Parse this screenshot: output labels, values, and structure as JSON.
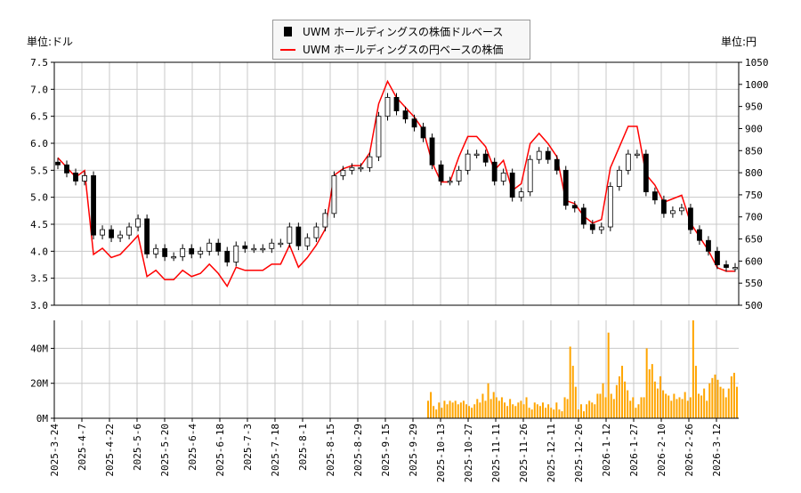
{
  "units": {
    "left": "単位:ドル",
    "right": "単位:円"
  },
  "legend": {
    "usd": "UWM ホールディングスの株価ドルベース",
    "jpy": "UWM ホールディングスの円ベースの株価"
  },
  "colors": {
    "usd": "#000000",
    "jpy": "#ff0000",
    "volume": "#ffa500",
    "grid": "#c8c8c8"
  },
  "chart_data": [
    {
      "type": "line",
      "title": "",
      "x_tick_labels": [
        "2025-3-24",
        "2025-4-7",
        "2025-4-22",
        "2025-5-6",
        "2025-5-20",
        "2025-6-4",
        "2025-6-18",
        "2025-7-3",
        "2025-7-18",
        "2025-8-1",
        "2025-8-15",
        "2025-8-29",
        "2025-9-15",
        "2025-9-29",
        "2025-10-13",
        "2025-10-27",
        "2025-11-11",
        "2025-11-26",
        "2025-12-11",
        "2025-12-26",
        "2026-1-12",
        "2026-1-27",
        "2026-2-10",
        "2026-2-26",
        "2026-3-12"
      ],
      "y_left": {
        "ylim": [
          3.0,
          7.5
        ],
        "ticks": [
          "3.0",
          "3.5",
          "4.0",
          "4.5",
          "5.0",
          "5.5",
          "6.0",
          "6.5",
          "7.0",
          "7.5"
        ]
      },
      "y_right": {
        "ylim": [
          500,
          1050
        ],
        "ticks": [
          "500",
          "550",
          "600",
          "650",
          "700",
          "750",
          "800",
          "850",
          "900",
          "950",
          "1000",
          "1050"
        ]
      },
      "grid": true,
      "legend_position": "top-center",
      "series": [
        {
          "name": "UWM ホールディングスの株価ドルベース",
          "style": "candlestick",
          "axis": "left",
          "close": [
            5.6,
            5.45,
            5.3,
            5.4,
            4.3,
            4.4,
            4.25,
            4.3,
            4.45,
            4.6,
            3.95,
            4.05,
            3.9,
            3.9,
            4.05,
            3.95,
            4.0,
            4.15,
            4.0,
            3.8,
            4.1,
            4.05,
            4.05,
            4.05,
            4.15,
            4.15,
            4.45,
            4.1,
            4.25,
            4.45,
            4.7,
            5.4,
            5.5,
            5.55,
            5.55,
            5.75,
            6.5,
            6.85,
            6.6,
            6.45,
            6.3,
            6.1,
            5.6,
            5.3,
            5.3,
            5.5,
            5.8,
            5.8,
            5.65,
            5.3,
            5.45,
            5.0,
            5.1,
            5.7,
            5.85,
            5.7,
            5.5,
            4.85,
            4.8,
            4.5,
            4.4,
            4.45,
            5.2,
            5.5,
            5.8,
            5.8,
            5.1,
            4.95,
            4.7,
            4.75,
            4.8,
            4.4,
            4.2,
            4.0,
            3.75,
            3.7,
            3.7
          ]
        },
        {
          "name": "UWM ホールディングスの円ベースの株価",
          "style": "line",
          "axis": "right",
          "values": [
            834,
            812,
            790,
            805,
            615,
            629,
            608,
            615,
            636,
            658,
            565,
            579,
            558,
            558,
            579,
            565,
            572,
            593,
            572,
            543,
            586,
            579,
            579,
            579,
            593,
            593,
            636,
            586,
            608,
            636,
            672,
            794,
            809,
            816,
            816,
            845,
            956,
            1007,
            970,
            948,
            926,
            897,
            823,
            779,
            779,
            836,
            882,
            882,
            859,
            806,
            828,
            760,
            775,
            866,
            889,
            866,
            836,
            737,
            730,
            702,
            686,
            694,
            811,
            858,
            905,
            905,
            796,
            772,
            733,
            741,
            749,
            686,
            655,
            624,
            585,
            577,
            577
          ]
        }
      ]
    },
    {
      "type": "bar",
      "title": "",
      "ylim": [
        0,
        56
      ],
      "y_tick_labels": [
        "0M",
        "20M",
        "40M"
      ],
      "grid": true,
      "series": [
        {
          "unit": "M",
          "values": [
            10,
            15,
            7,
            5,
            9,
            6,
            10,
            8,
            10,
            9,
            10,
            8,
            9,
            10,
            8,
            7,
            6,
            8,
            11,
            9,
            14,
            10,
            20,
            11,
            15,
            12,
            10,
            12,
            9,
            7,
            11,
            8,
            7,
            9,
            10,
            8,
            12,
            6,
            5,
            9,
            8,
            7,
            9,
            6,
            8,
            6,
            5,
            9,
            5,
            4,
            12,
            11,
            41,
            30,
            18,
            5,
            8,
            4,
            8,
            10,
            9,
            8,
            14,
            14,
            20,
            12,
            49,
            14,
            11,
            19,
            24,
            30,
            21,
            16,
            10,
            12,
            6,
            8,
            12,
            12,
            40,
            28,
            31,
            21,
            17,
            24,
            16,
            14,
            13,
            10,
            14,
            11,
            12,
            11,
            15,
            10,
            12,
            56,
            30,
            14,
            13,
            17,
            10,
            20,
            23,
            25,
            22,
            18,
            17,
            12,
            17,
            24,
            26,
            18
          ]
        }
      ]
    }
  ]
}
